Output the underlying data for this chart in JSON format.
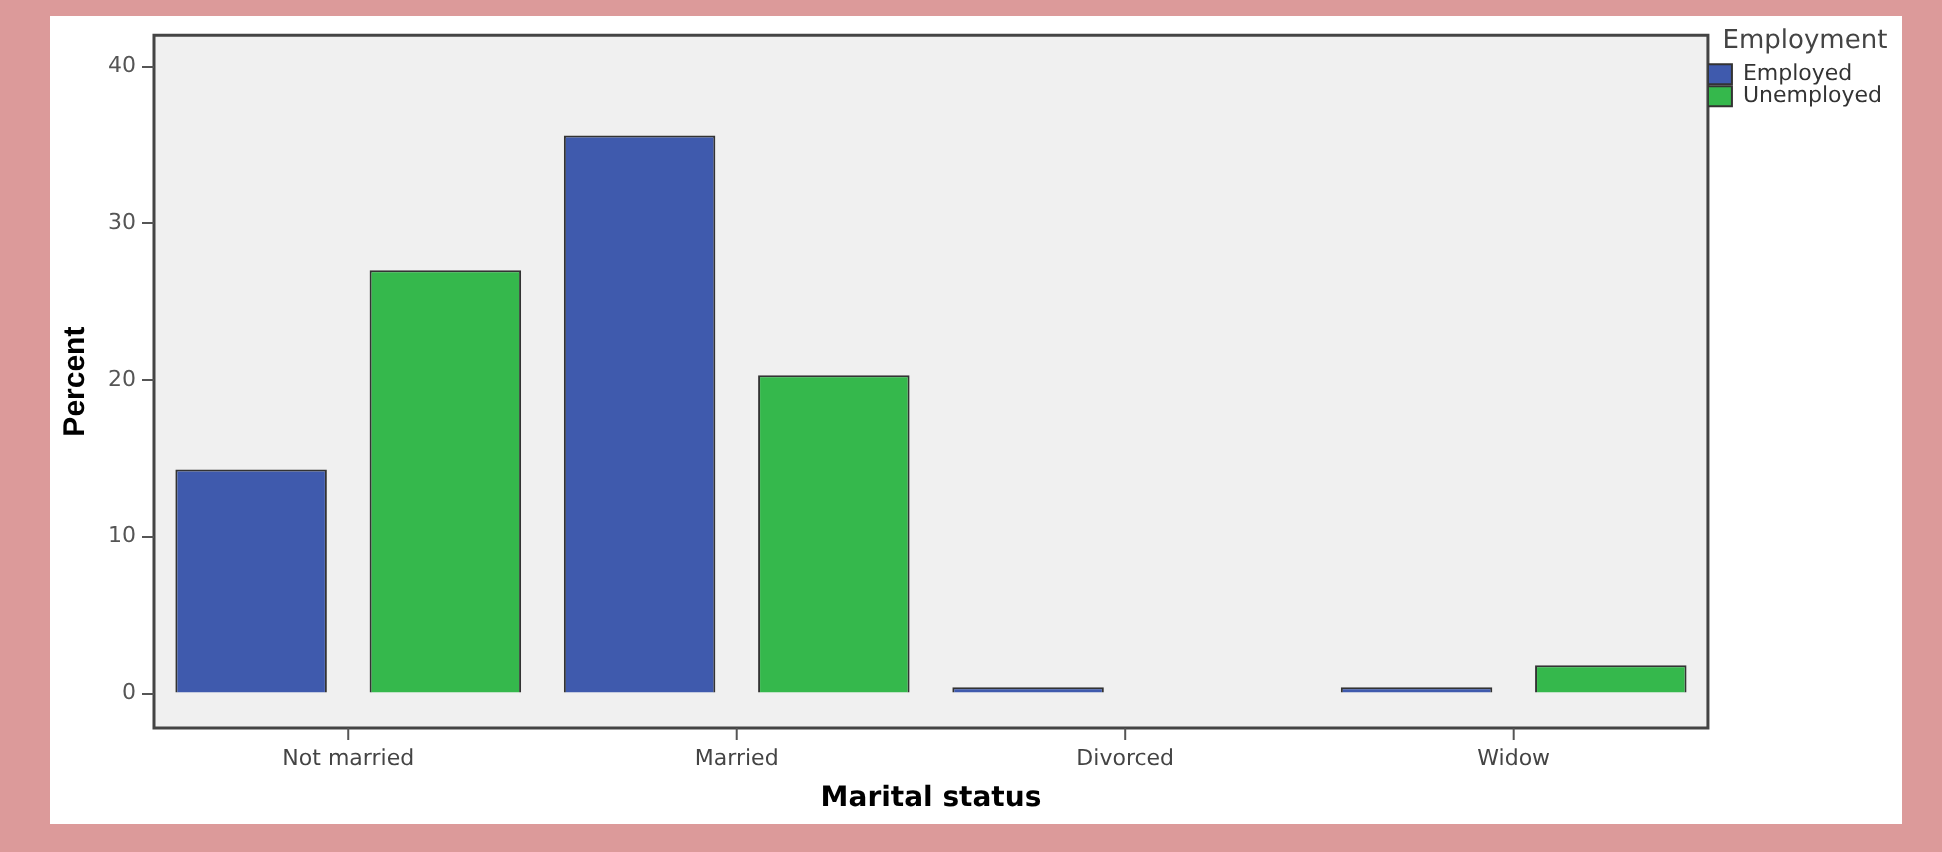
{
  "chart_data": {
    "type": "bar",
    "xlabel": "Marital status",
    "ylabel": "Percent",
    "legend_title": "Employment",
    "legend": "top right",
    "categories": [
      "Not married",
      "Married",
      "Divorced",
      "Widow"
    ],
    "series": [
      {
        "name": "Employed",
        "color": "#3f5aad",
        "values": [
          14.3,
          35.6,
          0.4,
          0.4
        ]
      },
      {
        "name": "Unemployed",
        "color": "#35b84c",
        "values": [
          27.0,
          20.3,
          0,
          1.8
        ]
      }
    ],
    "ylim": [
      -2.2,
      42
    ],
    "yticks": [
      0,
      10,
      20,
      30,
      40
    ],
    "grid": false
  }
}
